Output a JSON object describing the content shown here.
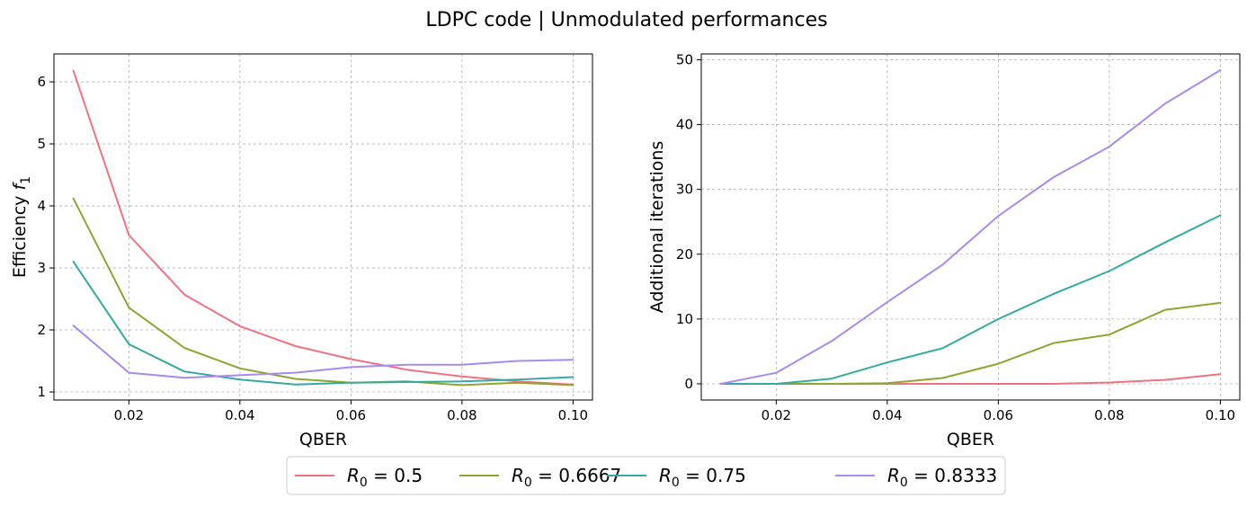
{
  "title": "LDPC code | Unmodulated performances",
  "legend": {
    "placement": "bottom-center",
    "entries": [
      {
        "base": "R",
        "sub": "0",
        "rest": " = 0.5",
        "color": "#f07282"
      },
      {
        "base": "R",
        "sub": "0",
        "rest": " = 0.6667",
        "color": "#8fa532"
      },
      {
        "base": "R",
        "sub": "0",
        "rest": " = 0.75",
        "color": "#35aaa0"
      },
      {
        "base": "R",
        "sub": "0",
        "rest": " = 0.8333",
        "color": "#a78bee"
      }
    ]
  },
  "chart_data": [
    {
      "type": "line",
      "xlabel": "QBER",
      "ylabel_main": "Efficiency ",
      "ylabel_math": "f",
      "ylabel_sub": "1",
      "xlim": [
        0.0065,
        0.1035
      ],
      "ylim": [
        0.87,
        6.45
      ],
      "xticks": [
        0.02,
        0.04,
        0.06,
        0.08,
        0.1
      ],
      "xtick_labels": [
        "0.02",
        "0.04",
        "0.06",
        "0.08",
        "0.10"
      ],
      "yticks": [
        1,
        2,
        3,
        4,
        5,
        6
      ],
      "ytick_labels": [
        "1",
        "2",
        "3",
        "4",
        "5",
        "6"
      ],
      "grid": true,
      "x": [
        0.01,
        0.02,
        0.03,
        0.04,
        0.05,
        0.06,
        0.07,
        0.08,
        0.09,
        0.1
      ],
      "series": [
        {
          "name": "R0 = 0.5",
          "values": [
            6.18,
            3.53,
            2.57,
            2.06,
            1.74,
            1.53,
            1.36,
            1.25,
            1.17,
            1.12
          ]
        },
        {
          "name": "R0 = 0.6667",
          "values": [
            4.12,
            2.36,
            1.71,
            1.38,
            1.21,
            1.15,
            1.17,
            1.11,
            1.15,
            1.11
          ]
        },
        {
          "name": "R0 = 0.75",
          "values": [
            3.1,
            1.77,
            1.33,
            1.2,
            1.12,
            1.15,
            1.16,
            1.17,
            1.2,
            1.24
          ]
        },
        {
          "name": "R0 = 0.8333",
          "values": [
            2.07,
            1.31,
            1.23,
            1.27,
            1.31,
            1.4,
            1.44,
            1.44,
            1.5,
            1.52
          ]
        }
      ]
    },
    {
      "type": "line",
      "xlabel": "QBER",
      "ylabel": "Additional iterations",
      "xlim": [
        0.0065,
        0.1035
      ],
      "ylim": [
        -2.5,
        50.9
      ],
      "xticks": [
        0.02,
        0.04,
        0.06,
        0.08,
        0.1
      ],
      "xtick_labels": [
        "0.02",
        "0.04",
        "0.06",
        "0.08",
        "0.10"
      ],
      "yticks": [
        0,
        10,
        20,
        30,
        40,
        50
      ],
      "ytick_labels": [
        "0",
        "10",
        "20",
        "30",
        "40",
        "50"
      ],
      "grid": true,
      "x": [
        0.01,
        0.02,
        0.03,
        0.04,
        0.05,
        0.06,
        0.07,
        0.08,
        0.09,
        0.1
      ],
      "series": [
        {
          "name": "R0 = 0.5",
          "values": [
            0,
            0,
            0,
            0,
            0,
            0,
            0,
            0.2,
            0.6,
            1.5
          ]
        },
        {
          "name": "R0 = 0.6667",
          "values": [
            0,
            0,
            0,
            0.1,
            0.9,
            3.1,
            6.3,
            7.6,
            11.4,
            12.5
          ]
        },
        {
          "name": "R0 = 0.75",
          "values": [
            0,
            0,
            0.8,
            3.3,
            5.5,
            10,
            13.9,
            17.4,
            21.8,
            26
          ]
        },
        {
          "name": "R0 = 0.8333",
          "values": [
            0,
            1.7,
            6.6,
            12.6,
            18.4,
            25.9,
            31.9,
            36.6,
            43.2,
            48.4
          ]
        }
      ]
    }
  ]
}
